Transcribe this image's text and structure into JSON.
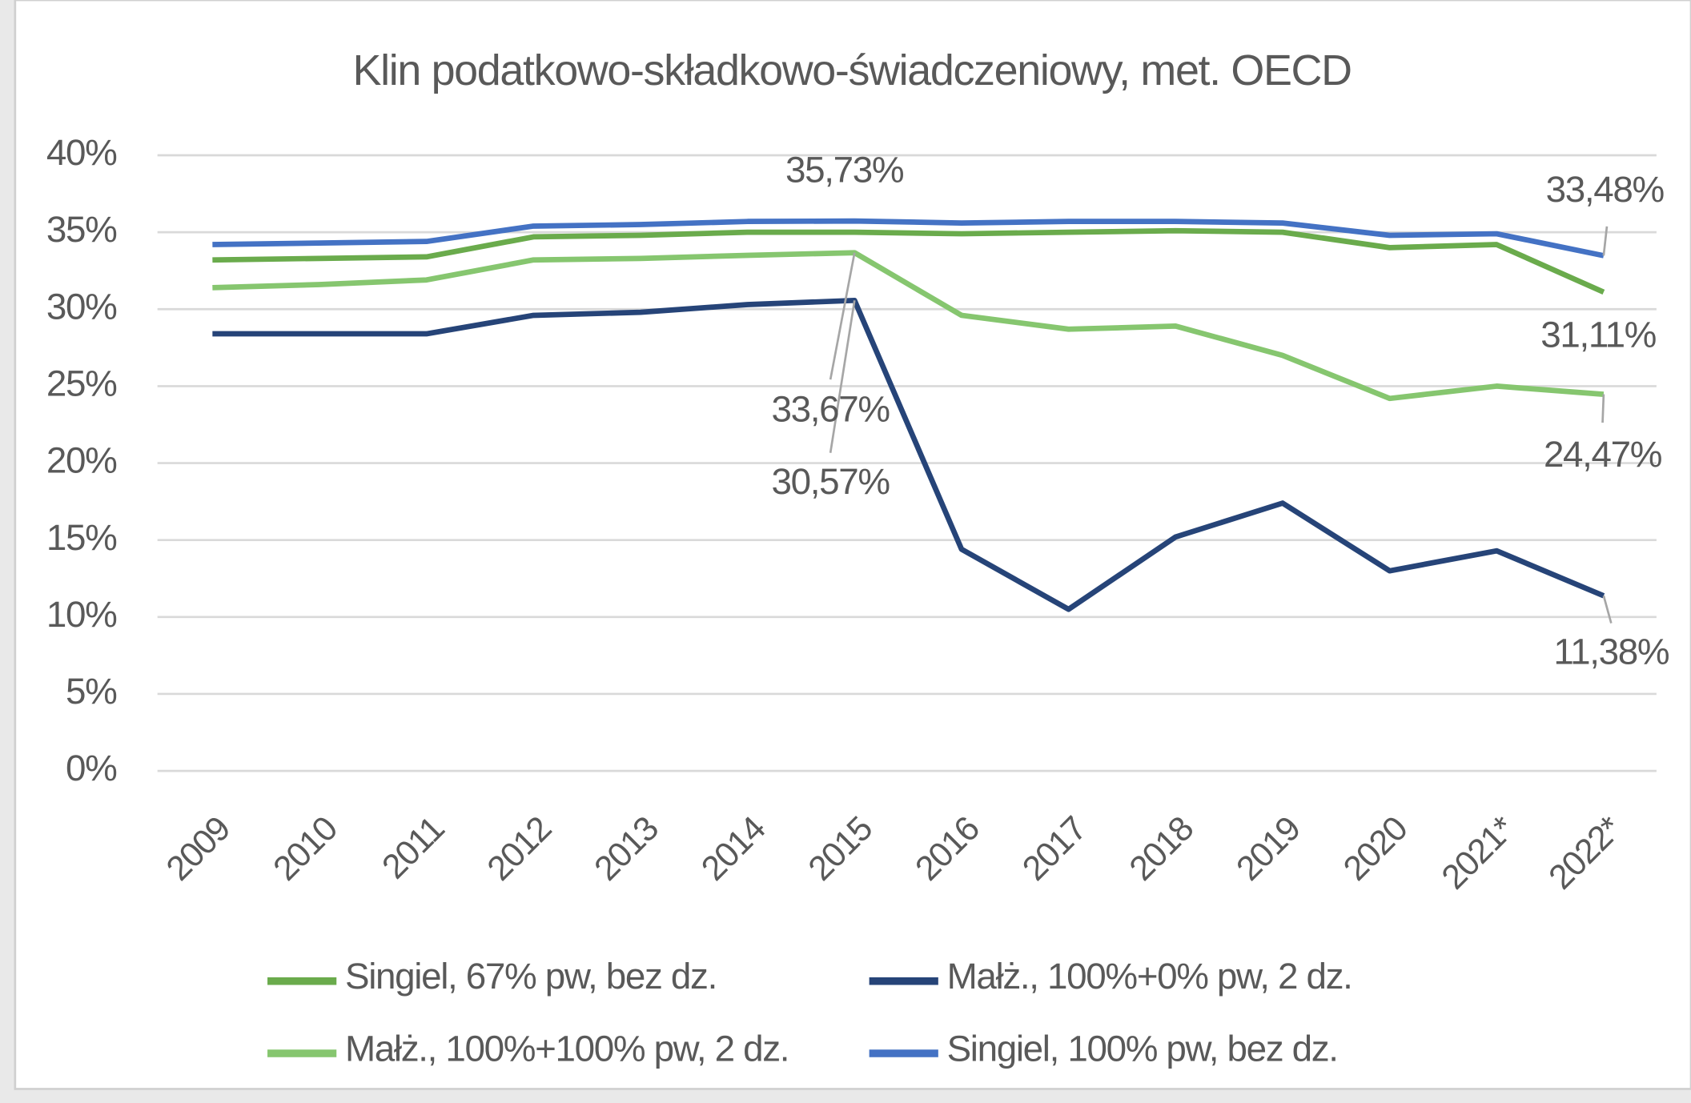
{
  "chart_data": {
    "type": "line",
    "title": "Klin podatkowo-składkowo-świadczeniowy, met. OECD",
    "categories": [
      "2009",
      "2010",
      "2011",
      "2012",
      "2013",
      "2014",
      "2015",
      "2016",
      "2017",
      "2018",
      "2019",
      "2020",
      "2021*",
      "2022*"
    ],
    "ylim": [
      0,
      40
    ],
    "yticks": [
      {
        "value": 0,
        "label": "0%"
      },
      {
        "value": 5,
        "label": "5%"
      },
      {
        "value": 10,
        "label": "10%"
      },
      {
        "value": 15,
        "label": "15%"
      },
      {
        "value": 20,
        "label": "20%"
      },
      {
        "value": 25,
        "label": "25%"
      },
      {
        "value": 30,
        "label": "30%"
      },
      {
        "value": 35,
        "label": "35%"
      },
      {
        "value": 40,
        "label": "40%"
      }
    ],
    "grid": true,
    "legend": "bottom",
    "series": [
      {
        "name": "Singiel, 67% pw, bez dz.",
        "color": "#6aab4c",
        "values": [
          33.2,
          33.3,
          33.4,
          34.7,
          34.8,
          35.0,
          35.0,
          34.9,
          35.0,
          35.1,
          35.0,
          34.0,
          34.2,
          31.11
        ],
        "value_labels": [
          null,
          null,
          null,
          null,
          null,
          null,
          null,
          null,
          null,
          null,
          null,
          null,
          null,
          "31,11%"
        ]
      },
      {
        "name": "Małż., 100%+0% pw, 2 dz.",
        "color": "#264478",
        "values": [
          28.4,
          28.4,
          28.4,
          29.6,
          29.8,
          30.3,
          30.57,
          14.4,
          10.5,
          15.2,
          17.4,
          13.0,
          14.3,
          11.38
        ],
        "value_labels": [
          null,
          null,
          null,
          null,
          null,
          null,
          "30,57%",
          null,
          null,
          null,
          null,
          null,
          null,
          "11,38%"
        ]
      },
      {
        "name": "Małż., 100%+100% pw, 2 dz.",
        "color": "#86c66f",
        "values": [
          31.4,
          31.6,
          31.9,
          33.2,
          33.3,
          33.5,
          33.67,
          29.6,
          28.7,
          28.9,
          27.0,
          24.2,
          25.0,
          24.47
        ],
        "value_labels": [
          null,
          null,
          null,
          null,
          null,
          null,
          "33,67%",
          null,
          null,
          null,
          null,
          null,
          null,
          "24,47%"
        ]
      },
      {
        "name": "Singiel, 100% pw, bez dz.",
        "color": "#4472c4",
        "values": [
          34.2,
          34.3,
          34.4,
          35.4,
          35.5,
          35.7,
          35.73,
          35.6,
          35.7,
          35.7,
          35.6,
          34.8,
          34.9,
          33.48
        ],
        "value_labels": [
          null,
          null,
          null,
          null,
          null,
          null,
          "35,73%",
          null,
          null,
          null,
          null,
          null,
          null,
          "33,48%"
        ]
      }
    ]
  }
}
